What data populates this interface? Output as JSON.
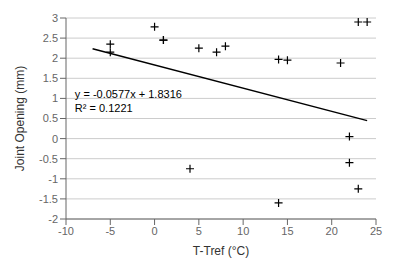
{
  "chart_data": {
    "type": "scatter",
    "x_label": "T-Tref (°C)",
    "y_label": "Joint Opening (mm)",
    "series": [
      {
        "type": "scatter",
        "marker": "+",
        "color": "black",
        "x": [
          -5,
          -5,
          0,
          1,
          1,
          5,
          7,
          8,
          14,
          15,
          21,
          22,
          23,
          24,
          4,
          14,
          22,
          23
        ],
        "values": [
          2.35,
          2.15,
          2.78,
          2.45,
          2.45,
          2.25,
          2.15,
          2.3,
          1.97,
          1.95,
          1.88,
          0.05,
          2.9,
          2.9,
          -0.75,
          -1.6,
          -0.6,
          -1.25
        ]
      },
      {
        "type": "line",
        "color": "black",
        "x": [
          -7,
          24
        ],
        "values": [
          2.2355,
          0.4468
        ]
      }
    ],
    "annotations": [
      {
        "text": "y = -0.0577x + 1.8316",
        "x": -9.0,
        "y": 1.1
      },
      {
        "text": "R² = 0.1221",
        "x": -9.0,
        "y": 0.75
      }
    ],
    "xlim": [
      -10,
      25
    ],
    "ylim": [
      -2,
      3
    ],
    "xticks": [
      -10,
      -5,
      0,
      5,
      10,
      15,
      20,
      25
    ],
    "yticks": [
      -2,
      -1.5,
      -1,
      -0.5,
      0,
      0.5,
      1,
      1.5,
      2,
      2.5,
      3
    ],
    "grid": "y"
  }
}
